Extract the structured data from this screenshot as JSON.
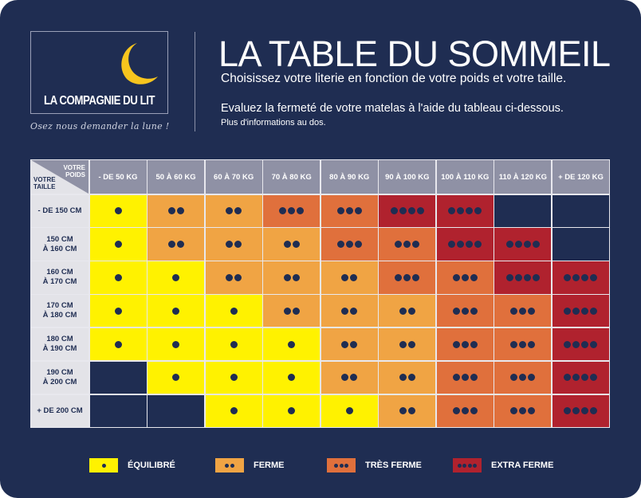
{
  "brand": {
    "name": "LA COMPAGNIE DU LIT",
    "tagline": "Osez nous demander la lune !"
  },
  "header": {
    "title": "LA TABLE DU SOMMEIL",
    "subtitle": "Choisissez votre literie en fonction de votre poids et votre taille.",
    "line2": "Evaluez la fermeté de votre matelas à l'aide du tableau ci-dessous.",
    "line3": "Plus d'informations au dos."
  },
  "table": {
    "corner_weight": "VOTRE POIDS",
    "corner_height": "VOTRE TAILLE",
    "columns": [
      "- DE 50 KG",
      "50 À 60 KG",
      "60 À 70 KG",
      "70 À 80 KG",
      "80 À 90 KG",
      "90 À 100 KG",
      "100 À 110 KG",
      "110 À 120 KG",
      "+ DE 120 KG"
    ],
    "rows": [
      {
        "label": "- DE 150 CM",
        "levels": [
          1,
          2,
          2,
          3,
          3,
          4,
          4,
          0,
          0
        ]
      },
      {
        "label": "150 CM\nÀ 160 CM",
        "levels": [
          1,
          2,
          2,
          2,
          3,
          3,
          4,
          4,
          0
        ]
      },
      {
        "label": "160 CM\nÀ 170 CM",
        "levels": [
          1,
          1,
          2,
          2,
          2,
          3,
          3,
          4,
          4
        ]
      },
      {
        "label": "170 CM\nÀ 180 CM",
        "levels": [
          1,
          1,
          1,
          2,
          2,
          2,
          3,
          3,
          4
        ]
      },
      {
        "label": "180 CM\nÀ 190 CM",
        "levels": [
          1,
          1,
          1,
          1,
          2,
          2,
          3,
          3,
          4
        ]
      },
      {
        "label": "190 CM\nÀ 200 CM",
        "levels": [
          0,
          1,
          1,
          1,
          2,
          2,
          3,
          3,
          4
        ]
      },
      {
        "label": "+ DE 200 CM",
        "levels": [
          0,
          0,
          1,
          1,
          1,
          2,
          3,
          3,
          4
        ]
      }
    ]
  },
  "legend": [
    {
      "level": 1,
      "label": "ÉQUILIBRÉ",
      "color": "#fff200"
    },
    {
      "level": 2,
      "label": "FERME",
      "color": "#f0a444"
    },
    {
      "level": 3,
      "label": "TRÈS FERME",
      "color": "#e0703c"
    },
    {
      "level": 4,
      "label": "EXTRA FERME",
      "color": "#b0222e"
    }
  ],
  "colors": {
    "background": "#1f2d52",
    "empty": "#1f2d52"
  }
}
